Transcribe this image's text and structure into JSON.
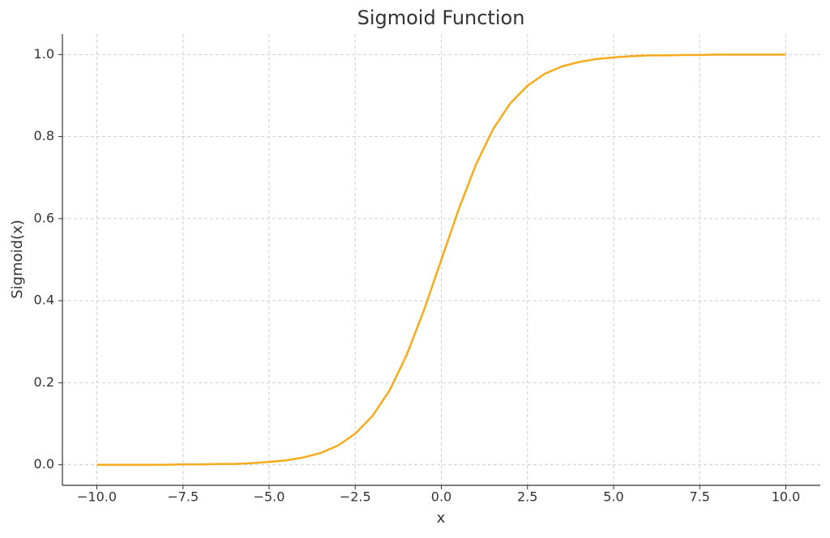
{
  "chart_data": {
    "type": "line",
    "title": "Sigmoid Function",
    "x_label": "x",
    "y_label": "Sigmoid(x)",
    "x": [
      -10,
      -9.5,
      -9,
      -8.5,
      -8,
      -7.5,
      -7,
      -6.5,
      -6,
      -5.5,
      -5,
      -4.5,
      -4,
      -3.5,
      -3,
      -2.5,
      -2,
      -1.5,
      -1,
      -0.5,
      0,
      0.5,
      1,
      1.5,
      2,
      2.5,
      3,
      3.5,
      4,
      4.5,
      5,
      5.5,
      6,
      6.5,
      7,
      7.5,
      8,
      8.5,
      9,
      9.5,
      10
    ],
    "series": [
      {
        "name": "Sigmoid(x)",
        "color": "#f5ab1b",
        "values": [
          0,
          0,
          0,
          0,
          0,
          0.001,
          0.001,
          0.002,
          0.002,
          0.004,
          0.007,
          0.011,
          0.018,
          0.029,
          0.047,
          0.076,
          0.119,
          0.182,
          0.269,
          0.378,
          0.5,
          0.622,
          0.731,
          0.818,
          0.881,
          0.924,
          0.953,
          0.971,
          0.982,
          0.989,
          0.993,
          0.996,
          0.998,
          0.998,
          0.999,
          0.999,
          1,
          1,
          1,
          1,
          1
        ]
      }
    ],
    "xlim": [
      -11,
      11
    ],
    "ylim": [
      -0.05,
      1.05
    ],
    "xticks": [
      {
        "value": -10,
        "label": "−10.0"
      },
      {
        "value": -7.5,
        "label": "−7.5"
      },
      {
        "value": -5,
        "label": "−5.0"
      },
      {
        "value": -2.5,
        "label": "−2.5"
      },
      {
        "value": 0,
        "label": "0.0"
      },
      {
        "value": 2.5,
        "label": "2.5"
      },
      {
        "value": 5,
        "label": "5.0"
      },
      {
        "value": 7.5,
        "label": "7.5"
      },
      {
        "value": 10,
        "label": "10.0"
      }
    ],
    "yticks": [
      {
        "value": 0,
        "label": "0.0"
      },
      0.2,
      0.4,
      0.6,
      0.8,
      {
        "value": 1,
        "label": "1.0"
      }
    ],
    "grid": true
  }
}
